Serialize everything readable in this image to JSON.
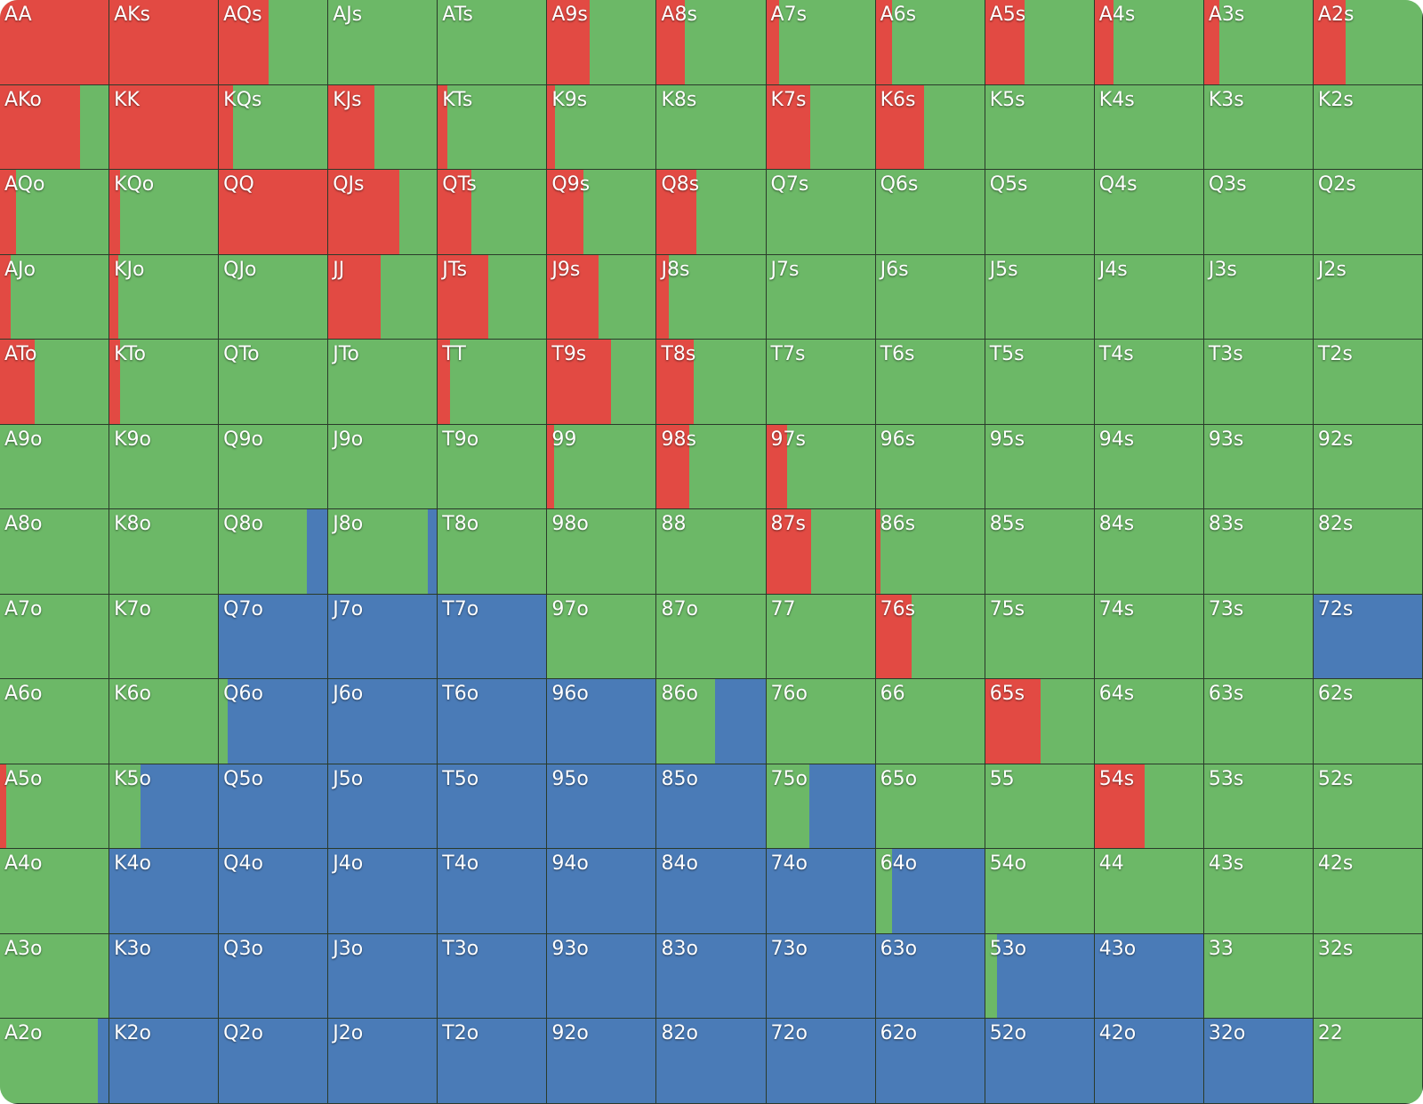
{
  "grid": {
    "rows": [
      [
        {
          "label": "AA",
          "raise": 100,
          "call": 0,
          "fold": 0
        },
        {
          "label": "AKs",
          "raise": 100,
          "call": 0,
          "fold": 0
        },
        {
          "label": "AQs",
          "raise": 45,
          "call": 55,
          "fold": 0
        },
        {
          "label": "AJs",
          "raise": 0,
          "call": 100,
          "fold": 0
        },
        {
          "label": "ATs",
          "raise": 0,
          "call": 100,
          "fold": 0
        },
        {
          "label": "A9s",
          "raise": 39,
          "call": 61,
          "fold": 0
        },
        {
          "label": "A8s",
          "raise": 26,
          "call": 74,
          "fold": 0
        },
        {
          "label": "A7s",
          "raise": 12,
          "call": 88,
          "fold": 0
        },
        {
          "label": "A6s",
          "raise": 15,
          "call": 85,
          "fold": 0
        },
        {
          "label": "A5s",
          "raise": 36,
          "call": 64,
          "fold": 0
        },
        {
          "label": "A4s",
          "raise": 17,
          "call": 83,
          "fold": 0
        },
        {
          "label": "A3s",
          "raise": 14,
          "call": 86,
          "fold": 0
        },
        {
          "label": "A2s",
          "raise": 29,
          "call": 71,
          "fold": 0
        }
      ],
      [
        {
          "label": "AKo",
          "raise": 73,
          "call": 27,
          "fold": 0
        },
        {
          "label": "KK",
          "raise": 100,
          "call": 0,
          "fold": 0
        },
        {
          "label": "KQs",
          "raise": 13,
          "call": 87,
          "fold": 0
        },
        {
          "label": "KJs",
          "raise": 42,
          "call": 58,
          "fold": 0
        },
        {
          "label": "KTs",
          "raise": 9,
          "call": 91,
          "fold": 0
        },
        {
          "label": "K9s",
          "raise": 7,
          "call": 93,
          "fold": 0
        },
        {
          "label": "K8s",
          "raise": 0,
          "call": 100,
          "fold": 0
        },
        {
          "label": "K7s",
          "raise": 40,
          "call": 60,
          "fold": 0
        },
        {
          "label": "K6s",
          "raise": 44,
          "call": 56,
          "fold": 0
        },
        {
          "label": "K5s",
          "raise": 0,
          "call": 100,
          "fold": 0
        },
        {
          "label": "K4s",
          "raise": 0,
          "call": 100,
          "fold": 0
        },
        {
          "label": "K3s",
          "raise": 0,
          "call": 100,
          "fold": 0
        },
        {
          "label": "K2s",
          "raise": 0,
          "call": 100,
          "fold": 0
        }
      ],
      [
        {
          "label": "AQo",
          "raise": 15,
          "call": 85,
          "fold": 0
        },
        {
          "label": "KQo",
          "raise": 10,
          "call": 90,
          "fold": 0
        },
        {
          "label": "QQ",
          "raise": 100,
          "call": 0,
          "fold": 0
        },
        {
          "label": "QJs",
          "raise": 65,
          "call": 35,
          "fold": 0
        },
        {
          "label": "QTs",
          "raise": 31,
          "call": 69,
          "fold": 0
        },
        {
          "label": "Q9s",
          "raise": 33,
          "call": 67,
          "fold": 0
        },
        {
          "label": "Q8s",
          "raise": 36,
          "call": 64,
          "fold": 0
        },
        {
          "label": "Q7s",
          "raise": 0,
          "call": 100,
          "fold": 0
        },
        {
          "label": "Q6s",
          "raise": 0,
          "call": 100,
          "fold": 0
        },
        {
          "label": "Q5s",
          "raise": 0,
          "call": 100,
          "fold": 0
        },
        {
          "label": "Q4s",
          "raise": 0,
          "call": 100,
          "fold": 0
        },
        {
          "label": "Q3s",
          "raise": 0,
          "call": 100,
          "fold": 0
        },
        {
          "label": "Q2s",
          "raise": 0,
          "call": 100,
          "fold": 0
        }
      ],
      [
        {
          "label": "AJo",
          "raise": 10,
          "call": 90,
          "fold": 0
        },
        {
          "label": "KJo",
          "raise": 8,
          "call": 92,
          "fold": 0
        },
        {
          "label": "QJo",
          "raise": 0,
          "call": 100,
          "fold": 0
        },
        {
          "label": "JJ",
          "raise": 48,
          "call": 52,
          "fold": 0
        },
        {
          "label": "JTs",
          "raise": 46,
          "call": 54,
          "fold": 0
        },
        {
          "label": "J9s",
          "raise": 47,
          "call": 53,
          "fold": 0
        },
        {
          "label": "J8s",
          "raise": 11,
          "call": 89,
          "fold": 0
        },
        {
          "label": "J7s",
          "raise": 0,
          "call": 100,
          "fold": 0
        },
        {
          "label": "J6s",
          "raise": 0,
          "call": 100,
          "fold": 0
        },
        {
          "label": "J5s",
          "raise": 0,
          "call": 100,
          "fold": 0
        },
        {
          "label": "J4s",
          "raise": 0,
          "call": 100,
          "fold": 0
        },
        {
          "label": "J3s",
          "raise": 0,
          "call": 100,
          "fold": 0
        },
        {
          "label": "J2s",
          "raise": 0,
          "call": 100,
          "fold": 0
        }
      ],
      [
        {
          "label": "ATo",
          "raise": 32,
          "call": 68,
          "fold": 0
        },
        {
          "label": "KTo",
          "raise": 10,
          "call": 90,
          "fold": 0
        },
        {
          "label": "QTo",
          "raise": 0,
          "call": 100,
          "fold": 0
        },
        {
          "label": "JTo",
          "raise": 0,
          "call": 100,
          "fold": 0
        },
        {
          "label": "TT",
          "raise": 11,
          "call": 89,
          "fold": 0
        },
        {
          "label": "T9s",
          "raise": 58,
          "call": 42,
          "fold": 0
        },
        {
          "label": "T8s",
          "raise": 34,
          "call": 66,
          "fold": 0
        },
        {
          "label": "T7s",
          "raise": 0,
          "call": 100,
          "fold": 0
        },
        {
          "label": "T6s",
          "raise": 0,
          "call": 100,
          "fold": 0
        },
        {
          "label": "T5s",
          "raise": 0,
          "call": 100,
          "fold": 0
        },
        {
          "label": "T4s",
          "raise": 0,
          "call": 100,
          "fold": 0
        },
        {
          "label": "T3s",
          "raise": 0,
          "call": 100,
          "fold": 0
        },
        {
          "label": "T2s",
          "raise": 0,
          "call": 100,
          "fold": 0
        }
      ],
      [
        {
          "label": "A9o",
          "raise": 0,
          "call": 100,
          "fold": 0
        },
        {
          "label": "K9o",
          "raise": 0,
          "call": 100,
          "fold": 0
        },
        {
          "label": "Q9o",
          "raise": 0,
          "call": 100,
          "fold": 0
        },
        {
          "label": "J9o",
          "raise": 0,
          "call": 100,
          "fold": 0
        },
        {
          "label": "T9o",
          "raise": 0,
          "call": 100,
          "fold": 0
        },
        {
          "label": "99",
          "raise": 6,
          "call": 94,
          "fold": 0
        },
        {
          "label": "98s",
          "raise": 30,
          "call": 70,
          "fold": 0
        },
        {
          "label": "97s",
          "raise": 19,
          "call": 81,
          "fold": 0
        },
        {
          "label": "96s",
          "raise": 0,
          "call": 100,
          "fold": 0
        },
        {
          "label": "95s",
          "raise": 0,
          "call": 100,
          "fold": 0
        },
        {
          "label": "94s",
          "raise": 0,
          "call": 100,
          "fold": 0
        },
        {
          "label": "93s",
          "raise": 0,
          "call": 100,
          "fold": 0
        },
        {
          "label": "92s",
          "raise": 0,
          "call": 100,
          "fold": 0
        }
      ],
      [
        {
          "label": "A8o",
          "raise": 0,
          "call": 100,
          "fold": 0
        },
        {
          "label": "K8o",
          "raise": 0,
          "call": 100,
          "fold": 0
        },
        {
          "label": "Q8o",
          "raise": 0,
          "call": 80,
          "fold": 20
        },
        {
          "label": "J8o",
          "raise": 0,
          "call": 91,
          "fold": 9
        },
        {
          "label": "T8o",
          "raise": 0,
          "call": 100,
          "fold": 0
        },
        {
          "label": "98o",
          "raise": 0,
          "call": 100,
          "fold": 0
        },
        {
          "label": "88",
          "raise": 0,
          "call": 100,
          "fold": 0
        },
        {
          "label": "87s",
          "raise": 41,
          "call": 59,
          "fold": 0
        },
        {
          "label": "86s",
          "raise": 4,
          "call": 96,
          "fold": 0
        },
        {
          "label": "85s",
          "raise": 0,
          "call": 100,
          "fold": 0
        },
        {
          "label": "84s",
          "raise": 0,
          "call": 100,
          "fold": 0
        },
        {
          "label": "83s",
          "raise": 0,
          "call": 100,
          "fold": 0
        },
        {
          "label": "82s",
          "raise": 0,
          "call": 100,
          "fold": 0
        }
      ],
      [
        {
          "label": "A7o",
          "raise": 0,
          "call": 100,
          "fold": 0
        },
        {
          "label": "K7o",
          "raise": 0,
          "call": 100,
          "fold": 0
        },
        {
          "label": "Q7o",
          "raise": 0,
          "call": 0,
          "fold": 100
        },
        {
          "label": "J7o",
          "raise": 0,
          "call": 0,
          "fold": 100
        },
        {
          "label": "T7o",
          "raise": 0,
          "call": 0,
          "fold": 100
        },
        {
          "label": "97o",
          "raise": 0,
          "call": 100,
          "fold": 0
        },
        {
          "label": "87o",
          "raise": 0,
          "call": 100,
          "fold": 0
        },
        {
          "label": "77",
          "raise": 0,
          "call": 100,
          "fold": 0
        },
        {
          "label": "76s",
          "raise": 33,
          "call": 67,
          "fold": 0
        },
        {
          "label": "75s",
          "raise": 0,
          "call": 100,
          "fold": 0
        },
        {
          "label": "74s",
          "raise": 0,
          "call": 100,
          "fold": 0
        },
        {
          "label": "73s",
          "raise": 0,
          "call": 100,
          "fold": 0
        },
        {
          "label": "72s",
          "raise": 0,
          "call": 0,
          "fold": 100
        }
      ],
      [
        {
          "label": "A6o",
          "raise": 0,
          "call": 100,
          "fold": 0
        },
        {
          "label": "K6o",
          "raise": 0,
          "call": 100,
          "fold": 0
        },
        {
          "label": "Q6o",
          "raise": 0,
          "call": 8,
          "fold": 92
        },
        {
          "label": "J6o",
          "raise": 0,
          "call": 0,
          "fold": 100
        },
        {
          "label": "T6o",
          "raise": 0,
          "call": 0,
          "fold": 100
        },
        {
          "label": "96o",
          "raise": 0,
          "call": 0,
          "fold": 100
        },
        {
          "label": "86o",
          "raise": 0,
          "call": 53,
          "fold": 47
        },
        {
          "label": "76o",
          "raise": 0,
          "call": 100,
          "fold": 0
        },
        {
          "label": "66",
          "raise": 0,
          "call": 100,
          "fold": 0
        },
        {
          "label": "65s",
          "raise": 51,
          "call": 49,
          "fold": 0
        },
        {
          "label": "64s",
          "raise": 0,
          "call": 100,
          "fold": 0
        },
        {
          "label": "63s",
          "raise": 0,
          "call": 100,
          "fold": 0
        },
        {
          "label": "62s",
          "raise": 0,
          "call": 100,
          "fold": 0
        }
      ],
      [
        {
          "label": "A5o",
          "raise": 6,
          "call": 94,
          "fold": 0
        },
        {
          "label": "K5o",
          "raise": 0,
          "call": 28,
          "fold": 72
        },
        {
          "label": "Q5o",
          "raise": 0,
          "call": 0,
          "fold": 100
        },
        {
          "label": "J5o",
          "raise": 0,
          "call": 0,
          "fold": 100
        },
        {
          "label": "T5o",
          "raise": 0,
          "call": 0,
          "fold": 100
        },
        {
          "label": "95o",
          "raise": 0,
          "call": 0,
          "fold": 100
        },
        {
          "label": "85o",
          "raise": 0,
          "call": 0,
          "fold": 100
        },
        {
          "label": "75o",
          "raise": 0,
          "call": 39,
          "fold": 61
        },
        {
          "label": "65o",
          "raise": 0,
          "call": 100,
          "fold": 0
        },
        {
          "label": "55",
          "raise": 0,
          "call": 100,
          "fold": 0
        },
        {
          "label": "54s",
          "raise": 46,
          "call": 54,
          "fold": 0
        },
        {
          "label": "53s",
          "raise": 0,
          "call": 100,
          "fold": 0
        },
        {
          "label": "52s",
          "raise": 0,
          "call": 100,
          "fold": 0
        }
      ],
      [
        {
          "label": "A4o",
          "raise": 0,
          "call": 100,
          "fold": 0
        },
        {
          "label": "K4o",
          "raise": 0,
          "call": 0,
          "fold": 100
        },
        {
          "label": "Q4o",
          "raise": 0,
          "call": 0,
          "fold": 100
        },
        {
          "label": "J4o",
          "raise": 0,
          "call": 0,
          "fold": 100
        },
        {
          "label": "T4o",
          "raise": 0,
          "call": 0,
          "fold": 100
        },
        {
          "label": "94o",
          "raise": 0,
          "call": 0,
          "fold": 100
        },
        {
          "label": "84o",
          "raise": 0,
          "call": 0,
          "fold": 100
        },
        {
          "label": "74o",
          "raise": 0,
          "call": 0,
          "fold": 100
        },
        {
          "label": "64o",
          "raise": 0,
          "call": 15,
          "fold": 85
        },
        {
          "label": "54o",
          "raise": 0,
          "call": 100,
          "fold": 0
        },
        {
          "label": "44",
          "raise": 0,
          "call": 100,
          "fold": 0
        },
        {
          "label": "43s",
          "raise": 0,
          "call": 100,
          "fold": 0
        },
        {
          "label": "42s",
          "raise": 0,
          "call": 100,
          "fold": 0
        }
      ],
      [
        {
          "label": "A3o",
          "raise": 0,
          "call": 100,
          "fold": 0
        },
        {
          "label": "K3o",
          "raise": 0,
          "call": 0,
          "fold": 100
        },
        {
          "label": "Q3o",
          "raise": 0,
          "call": 0,
          "fold": 100
        },
        {
          "label": "J3o",
          "raise": 0,
          "call": 0,
          "fold": 100
        },
        {
          "label": "T3o",
          "raise": 0,
          "call": 0,
          "fold": 100
        },
        {
          "label": "93o",
          "raise": 0,
          "call": 0,
          "fold": 100
        },
        {
          "label": "83o",
          "raise": 0,
          "call": 0,
          "fold": 100
        },
        {
          "label": "73o",
          "raise": 0,
          "call": 0,
          "fold": 100
        },
        {
          "label": "63o",
          "raise": 0,
          "call": 0,
          "fold": 100
        },
        {
          "label": "53o",
          "raise": 0,
          "call": 11,
          "fold": 89
        },
        {
          "label": "43o",
          "raise": 0,
          "call": 0,
          "fold": 100
        },
        {
          "label": "33",
          "raise": 0,
          "call": 100,
          "fold": 0
        },
        {
          "label": "32s",
          "raise": 0,
          "call": 100,
          "fold": 0
        }
      ],
      [
        {
          "label": "A2o",
          "raise": 0,
          "call": 89,
          "fold": 11
        },
        {
          "label": "K2o",
          "raise": 0,
          "call": 0,
          "fold": 100
        },
        {
          "label": "Q2o",
          "raise": 0,
          "call": 0,
          "fold": 100
        },
        {
          "label": "J2o",
          "raise": 0,
          "call": 0,
          "fold": 100
        },
        {
          "label": "T2o",
          "raise": 0,
          "call": 0,
          "fold": 100
        },
        {
          "label": "92o",
          "raise": 0,
          "call": 0,
          "fold": 100
        },
        {
          "label": "82o",
          "raise": 0,
          "call": 0,
          "fold": 100
        },
        {
          "label": "72o",
          "raise": 0,
          "call": 0,
          "fold": 100
        },
        {
          "label": "62o",
          "raise": 0,
          "call": 0,
          "fold": 100
        },
        {
          "label": "52o",
          "raise": 0,
          "call": 0,
          "fold": 100
        },
        {
          "label": "42o",
          "raise": 0,
          "call": 0,
          "fold": 100
        },
        {
          "label": "32o",
          "raise": 0,
          "call": 0,
          "fold": 100
        },
        {
          "label": "22",
          "raise": 0,
          "call": 100,
          "fold": 0
        }
      ]
    ]
  }
}
